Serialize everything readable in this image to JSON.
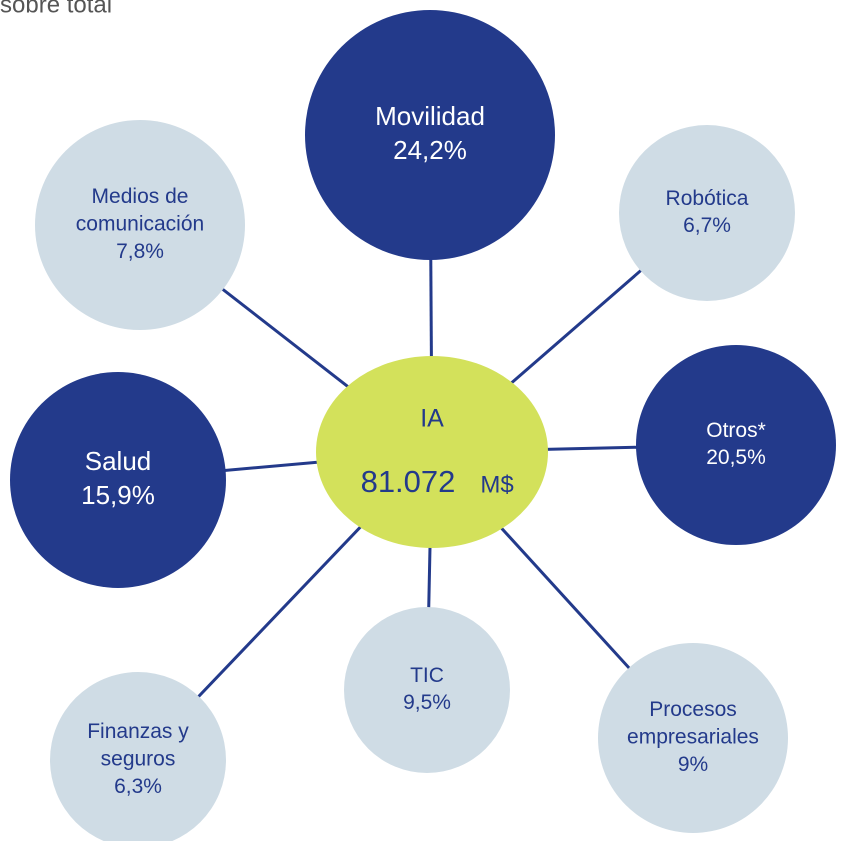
{
  "header": {
    "title": "sobre total"
  },
  "center": {
    "label": "IA",
    "amount": "81.072",
    "unit": "M$"
  },
  "nodes": [
    {
      "lines": [
        "Movilidad"
      ],
      "value": "24,2%"
    },
    {
      "lines": [
        "Robótica"
      ],
      "value": "6,7%"
    },
    {
      "lines": [
        "Otros*"
      ],
      "value": "20,5%"
    },
    {
      "lines": [
        "Procesos",
        "empresariales"
      ],
      "value": "9%"
    },
    {
      "lines": [
        "TIC"
      ],
      "value": "9,5%"
    },
    {
      "lines": [
        "Finanzas y",
        "seguros"
      ],
      "value": "6,3%"
    },
    {
      "lines": [
        "Salud"
      ],
      "value": "15,9%"
    },
    {
      "lines": [
        "Medios de",
        "comunicación"
      ],
      "value": "7,8%"
    }
  ]
}
